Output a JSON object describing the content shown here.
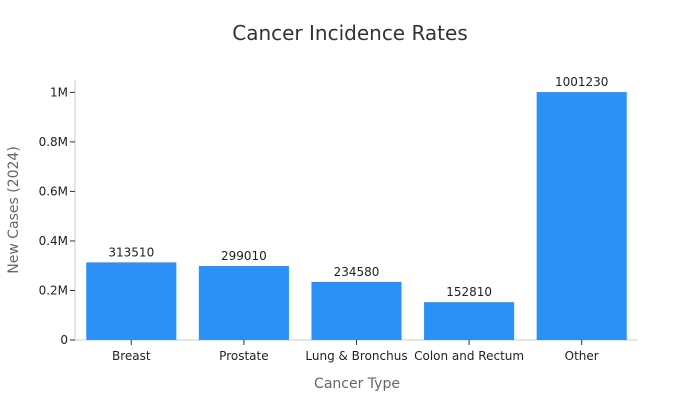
{
  "chart_data": {
    "type": "bar",
    "title": "Cancer Incidence Rates",
    "xlabel": "Cancer Type",
    "ylabel": "New Cases (2024)",
    "categories": [
      "Breast",
      "Prostate",
      "Lung & Bronchus",
      "Colon and Rectum",
      "Other"
    ],
    "values": [
      313510,
      299010,
      234580,
      152810,
      1001230
    ],
    "ylim": [
      0,
      1050000
    ],
    "yticks": [
      0,
      200000,
      400000,
      600000,
      800000,
      1000000
    ],
    "ytick_labels": [
      "0",
      "0.2M",
      "0.4M",
      "0.6M",
      "0.8M",
      "1M"
    ],
    "bar_color": "#2c91f7",
    "grid": false,
    "legend": "none"
  }
}
